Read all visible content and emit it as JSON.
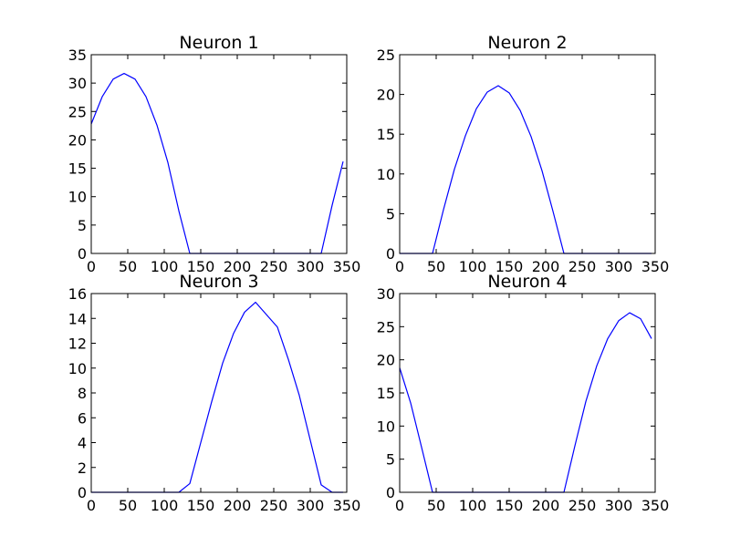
{
  "figure": {
    "background": "#ffffff"
  },
  "chart_data": [
    {
      "type": "line",
      "title": "Neuron 1",
      "xlim": [
        0,
        350
      ],
      "ylim": [
        0,
        35
      ],
      "x_ticks": [
        0,
        50,
        100,
        150,
        200,
        250,
        300,
        350
      ],
      "y_ticks": [
        0,
        5,
        10,
        15,
        20,
        25,
        30,
        35
      ],
      "grid": false,
      "series": [
        {
          "color": "#0000ff",
          "x": [
            0,
            15,
            30,
            45,
            60,
            75,
            90,
            105,
            120,
            135,
            150,
            165,
            180,
            195,
            210,
            225,
            240,
            255,
            270,
            285,
            300,
            315,
            330,
            345
          ],
          "y": [
            22.8,
            27.6,
            30.7,
            31.7,
            30.7,
            27.6,
            22.6,
            16.0,
            7.5,
            0,
            0,
            0,
            0,
            0,
            0,
            0,
            0,
            0,
            0,
            0,
            0,
            0,
            8.5,
            16.2
          ]
        }
      ]
    },
    {
      "type": "line",
      "title": "Neuron 2",
      "xlim": [
        0,
        350
      ],
      "ylim": [
        0,
        25
      ],
      "x_ticks": [
        0,
        50,
        100,
        150,
        200,
        250,
        300,
        350
      ],
      "y_ticks": [
        0,
        5,
        10,
        15,
        20,
        25
      ],
      "grid": false,
      "series": [
        {
          "color": "#0000ff",
          "x": [
            0,
            15,
            30,
            45,
            60,
            75,
            90,
            105,
            120,
            135,
            150,
            165,
            180,
            195,
            210,
            225,
            240,
            255,
            270,
            285,
            300,
            315,
            330,
            345
          ],
          "y": [
            0,
            0,
            0,
            0,
            5.5,
            10.6,
            14.8,
            18.2,
            20.3,
            21.1,
            20.2,
            18.0,
            14.7,
            10.4,
            5.3,
            0,
            0,
            0,
            0,
            0,
            0,
            0,
            0,
            0
          ]
        }
      ]
    },
    {
      "type": "line",
      "title": "Neuron 3",
      "xlim": [
        0,
        350
      ],
      "ylim": [
        0,
        16
      ],
      "x_ticks": [
        0,
        50,
        100,
        150,
        200,
        250,
        300,
        350
      ],
      "y_ticks": [
        0,
        2,
        4,
        6,
        8,
        10,
        12,
        14,
        16
      ],
      "grid": false,
      "series": [
        {
          "color": "#0000ff",
          "x": [
            0,
            15,
            30,
            45,
            60,
            75,
            90,
            105,
            120,
            135,
            150,
            165,
            180,
            195,
            210,
            225,
            240,
            255,
            270,
            285,
            300,
            315,
            330,
            345
          ],
          "y": [
            0,
            0,
            0,
            0,
            0,
            0,
            0,
            0,
            0,
            0.7,
            4.0,
            7.3,
            10.4,
            12.8,
            14.5,
            15.3,
            14.3,
            13.3,
            10.7,
            7.8,
            4.2,
            0.6,
            0,
            0
          ]
        }
      ]
    },
    {
      "type": "line",
      "title": "Neuron 4",
      "xlim": [
        0,
        350
      ],
      "ylim": [
        0,
        30
      ],
      "x_ticks": [
        0,
        50,
        100,
        150,
        200,
        250,
        300,
        350
      ],
      "y_ticks": [
        0,
        5,
        10,
        15,
        20,
        25,
        30
      ],
      "grid": false,
      "series": [
        {
          "color": "#0000ff",
          "x": [
            0,
            15,
            30,
            45,
            60,
            75,
            90,
            105,
            120,
            135,
            150,
            165,
            180,
            195,
            210,
            225,
            240,
            255,
            270,
            285,
            300,
            315,
            330,
            345
          ],
          "y": [
            18.8,
            13.5,
            6.8,
            0,
            0,
            0,
            0,
            0,
            0,
            0,
            0,
            0,
            0,
            0,
            0,
            0,
            7.0,
            13.7,
            19.1,
            23.2,
            25.9,
            27.1,
            26.2,
            23.2
          ]
        }
      ]
    }
  ]
}
